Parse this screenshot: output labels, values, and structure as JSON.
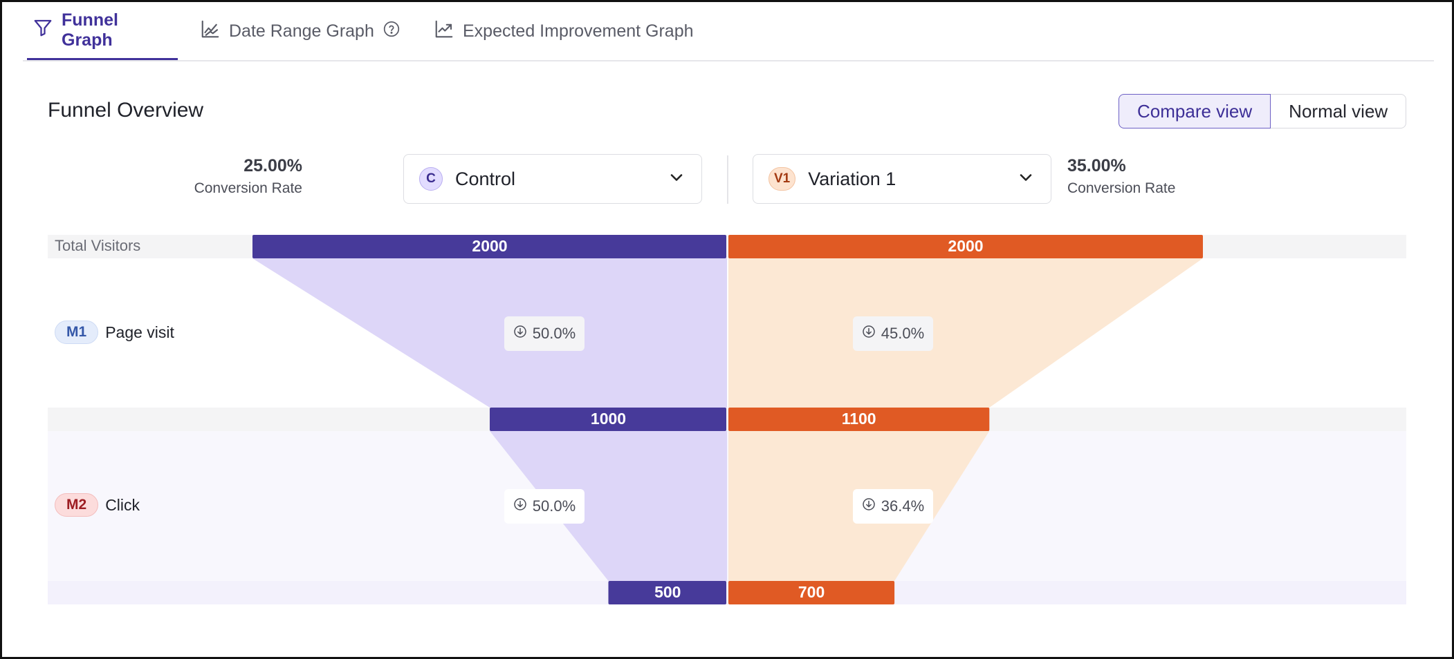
{
  "tabs": [
    {
      "label": "Funnel Graph",
      "icon": "filter-icon",
      "active": true
    },
    {
      "label": "Date Range Graph",
      "icon": "date-range-chart-icon",
      "help_icon": "help-circle-icon"
    },
    {
      "label": "Expected Improvement Graph",
      "icon": "trend-chart-icon"
    }
  ],
  "title": "Funnel Overview",
  "view_toggle": {
    "compare": "Compare view",
    "normal": "Normal view",
    "selected": "compare"
  },
  "control": {
    "badge": "C",
    "name": "Control",
    "conversion_value": "25.00%",
    "conversion_label": "Conversion Rate",
    "badge_color": "#e2dcff",
    "badge_text_color": "#3a2c8f"
  },
  "variation": {
    "badge": "V1",
    "name": "Variation 1",
    "conversion_value": "35.00%",
    "conversion_label": "Conversion Rate",
    "badge_color": "#fde3cf",
    "badge_text_color": "#a33a12"
  },
  "colors": {
    "control_bar": "#473a9a",
    "control_fill": "#ddd6f8",
    "variation_bar": "#e05a24",
    "variation_fill": "#fce8d4",
    "stripe_grey": "#f4f4f5",
    "stripe_lavender": "#f3f1fc",
    "band_lavender": "#f8f7fd"
  },
  "chart_data": {
    "type": "funnel",
    "stages": [
      "Total Visitors",
      "Page visit",
      "Click"
    ],
    "stage_badges": [
      "",
      "M1",
      "M2"
    ],
    "max_visitors": 2000,
    "series": [
      {
        "name": "Control",
        "values": [
          2000,
          1000,
          500
        ],
        "drop_labels": [
          "50.0%",
          "50.0%"
        ]
      },
      {
        "name": "Variation 1",
        "values": [
          2000,
          1100,
          700
        ],
        "drop_labels": [
          "45.0%",
          "36.4%"
        ]
      }
    ]
  },
  "stage_labels": {
    "total": "Total Visitors",
    "m1": {
      "badge": "M1",
      "name": "Page visit"
    },
    "m2": {
      "badge": "M2",
      "name": "Click"
    }
  },
  "drops": {
    "m1_control": "50.0%",
    "m1_variation": "45.0%",
    "m2_control": "50.0%",
    "m2_variation": "36.4%"
  }
}
